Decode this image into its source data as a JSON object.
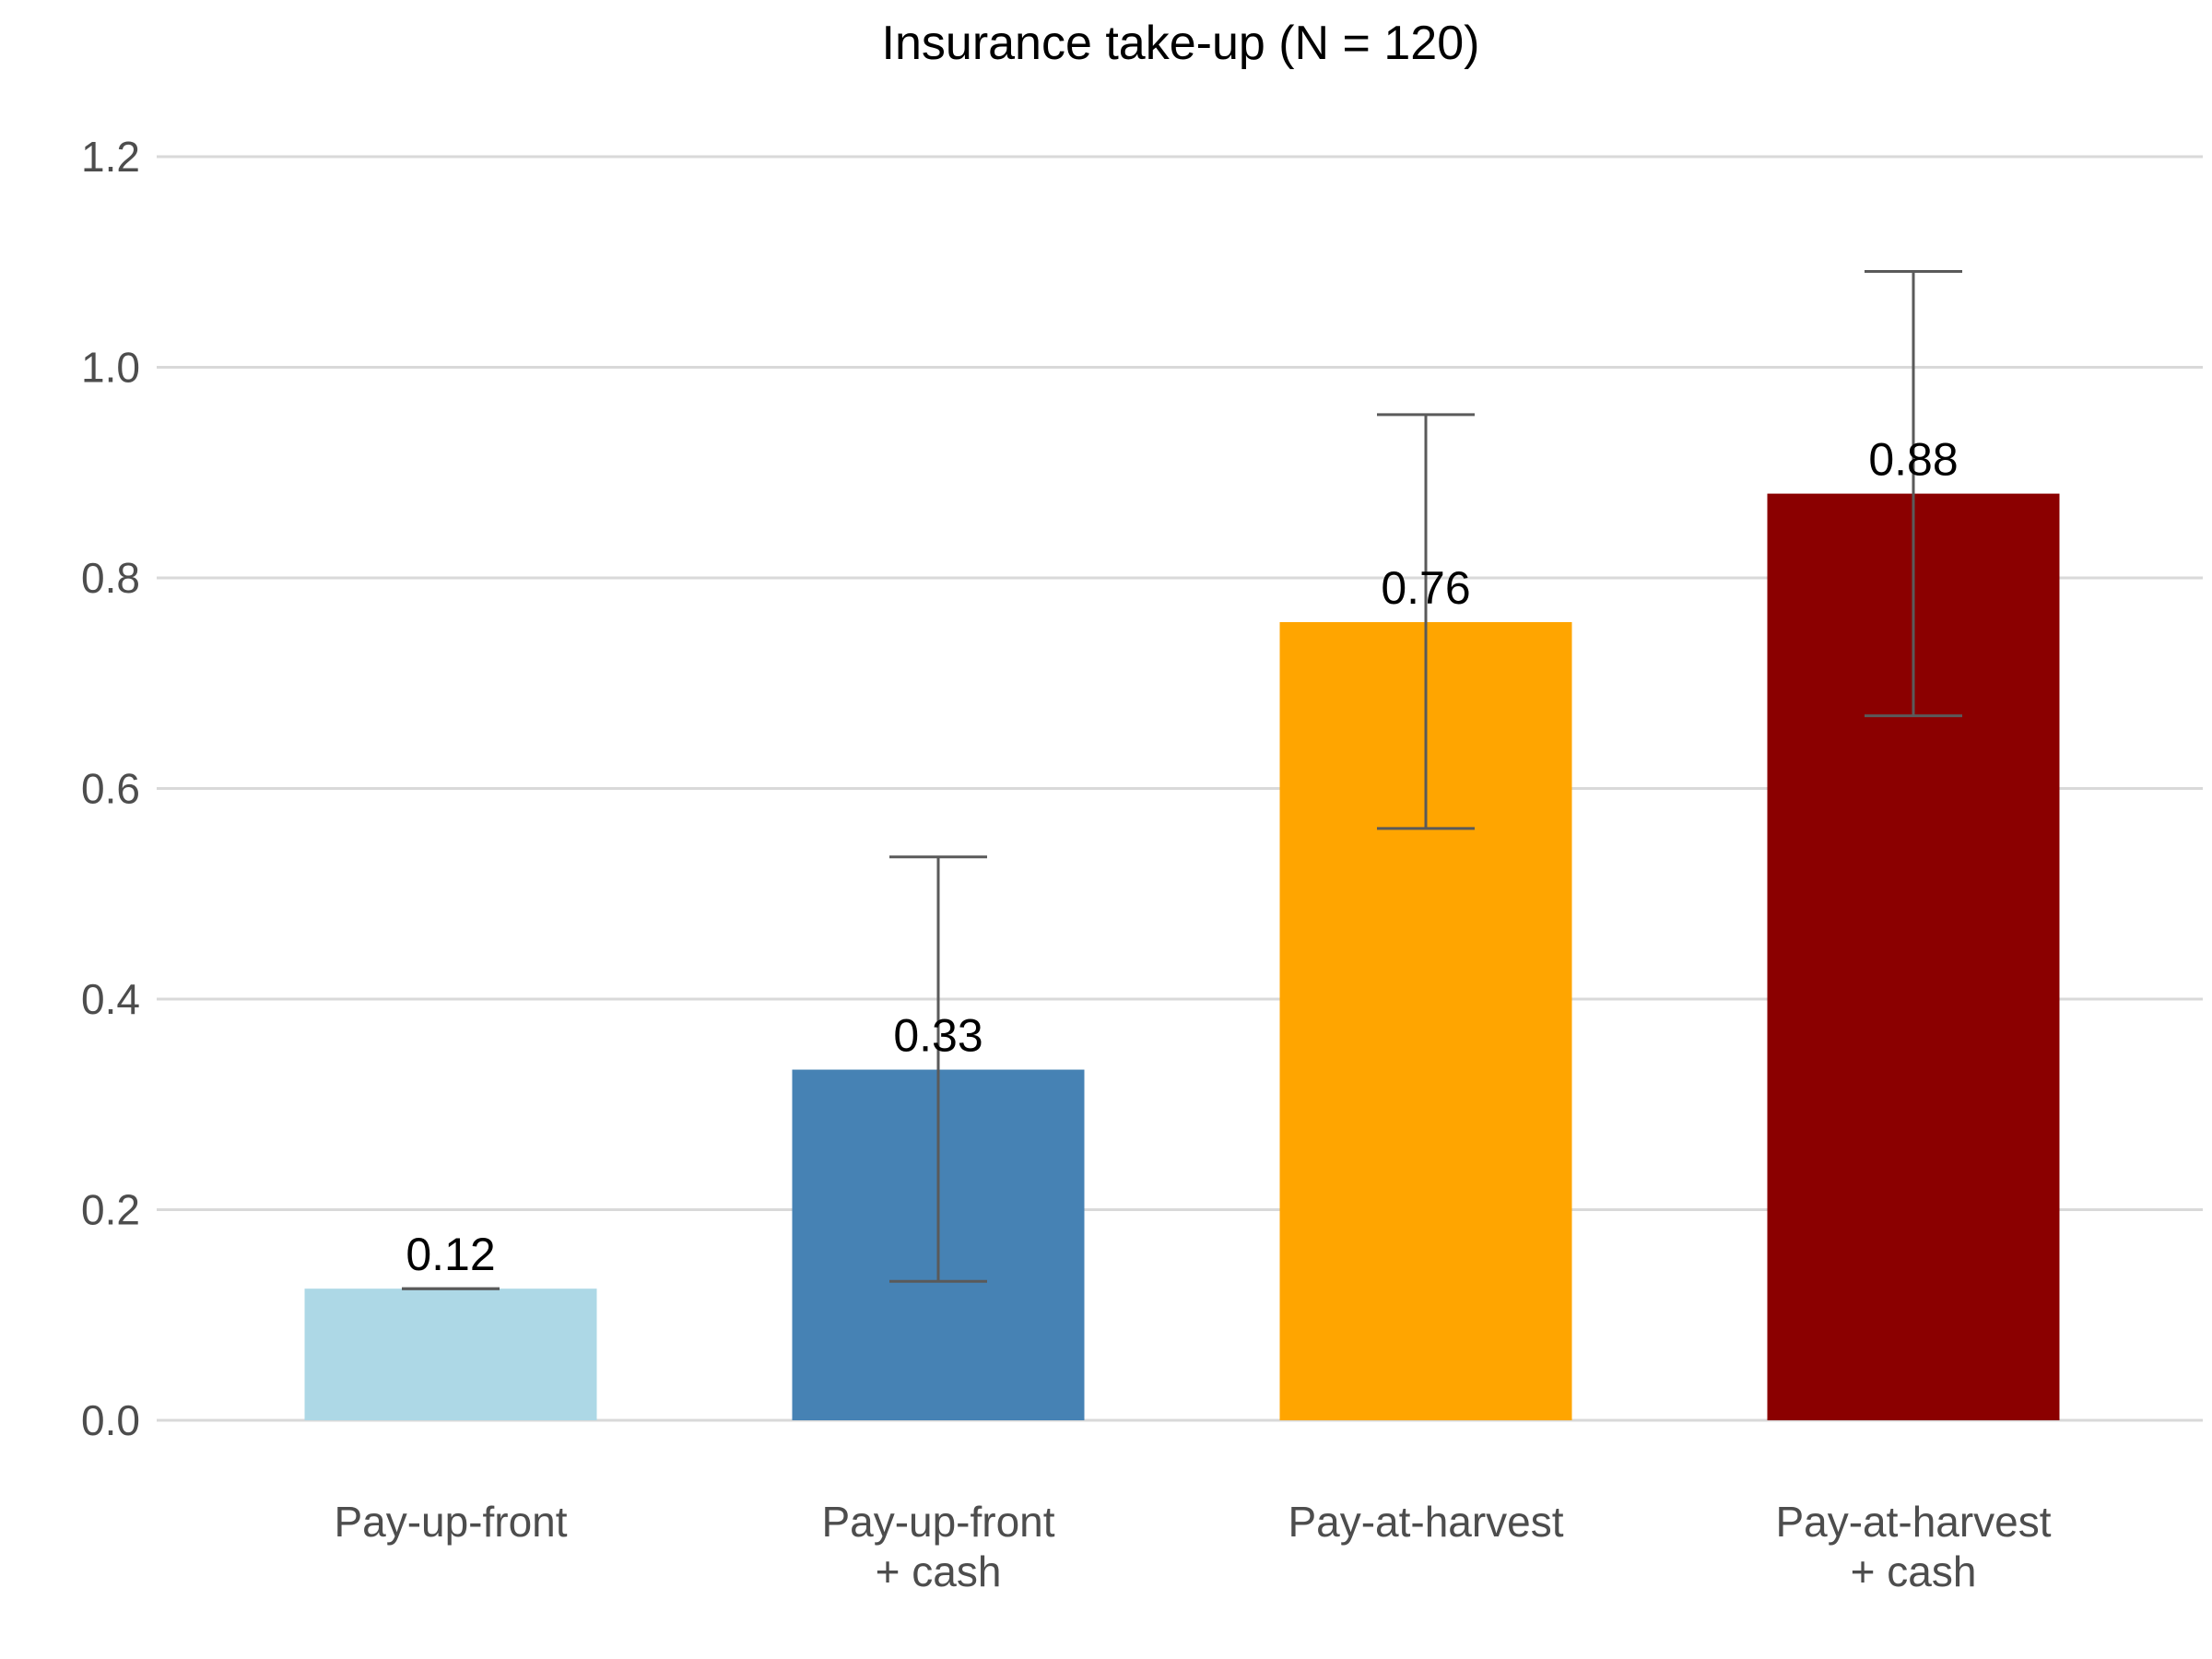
{
  "chart_data": {
    "type": "bar",
    "title": "Insurance take-up (N = 120)",
    "xlabel": "",
    "ylabel": "",
    "ylim": [
      0,
      1.2
    ],
    "yticks": [
      "0.0",
      "0.2",
      "0.4",
      "0.6",
      "0.8",
      "1.0",
      "1.2"
    ],
    "ytick_values": [
      0,
      0.2,
      0.4,
      0.6,
      0.8,
      1.0,
      1.2
    ],
    "grid": true,
    "legend": "none",
    "categories": [
      [
        "Pay-up-front"
      ],
      [
        "Pay-up-front",
        "+ cash"
      ],
      [
        "Pay-at-harvest"
      ],
      [
        "Pay-at-harvest",
        "+ cash"
      ]
    ],
    "values": [
      0.125,
      0.333,
      0.758,
      0.88
    ],
    "value_labels": [
      "0.12",
      "0.33",
      "0.76",
      "0.88"
    ],
    "error_low": [
      0.125,
      0.132,
      0.562,
      0.669
    ],
    "error_high": [
      0.125,
      0.535,
      0.955,
      1.091
    ],
    "colors": [
      "#add8e6",
      "#4682b4",
      "#ffa500",
      "#8b0000"
    ]
  }
}
